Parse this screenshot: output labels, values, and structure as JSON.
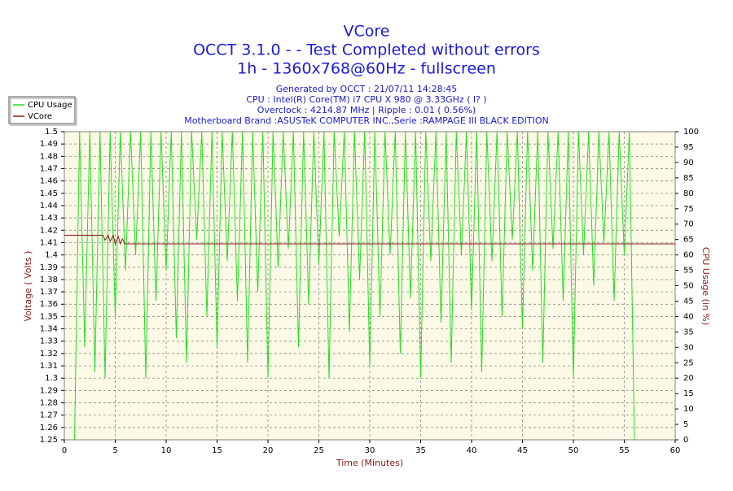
{
  "chart_data": {
    "type": "line",
    "title": "VCore",
    "subtitle": [
      "OCCT 3.1.0 -  - Test Completed without errors",
      "1h - 1360x768@60Hz - fullscreen"
    ],
    "info": [
      "Generated by OCCT : 21/07/11 14:28:45",
      "CPU : Intel(R) Core(TM) i7 CPU X 980 @ 3.33GHz (   l? )",
      "Overclock : 4214.87 MHz | Ripple : 0.01 ( 0.56%)",
      "Motherboard Brand :ASUSTeK COMPUTER INC.,Serie :RAMPAGE III BLACK EDITION"
    ],
    "xlabel": "Time (Minutes)",
    "ylabel": "Voltage ( Volts )",
    "y2label": "CPU Usage (in %)",
    "xlim": [
      0,
      60
    ],
    "xticks": [
      0,
      5,
      10,
      15,
      20,
      25,
      30,
      35,
      40,
      45,
      50,
      55,
      60
    ],
    "ylim": [
      1.25,
      1.5
    ],
    "yticks": [
      1.25,
      1.26,
      1.27,
      1.28,
      1.29,
      1.3,
      1.31,
      1.32,
      1.33,
      1.34,
      1.35,
      1.36,
      1.37,
      1.38,
      1.39,
      1.4,
      1.41,
      1.42,
      1.43,
      1.44,
      1.45,
      1.46,
      1.47,
      1.48,
      1.49,
      1.5
    ],
    "y2lim": [
      0,
      100
    ],
    "y2ticks": [
      0,
      5,
      10,
      15,
      20,
      25,
      30,
      35,
      40,
      45,
      50,
      55,
      60,
      65,
      70,
      75,
      80,
      85,
      90,
      95,
      100
    ],
    "grid": true,
    "legend": "top-left",
    "series": [
      {
        "name": "CPU Usage",
        "color": "#22dd22",
        "axis": "y2",
        "x": [
          1,
          1.5,
          2,
          2.5,
          3,
          3.5,
          4,
          4.5,
          5,
          5.5,
          6,
          6.5,
          7,
          7.5,
          8,
          8.5,
          9,
          9.5,
          10,
          10.5,
          11,
          11.5,
          12,
          12.5,
          13,
          13.5,
          14,
          14.5,
          15,
          15.5,
          16,
          16.5,
          17,
          17.5,
          18,
          18.5,
          19,
          19.5,
          20,
          20.5,
          21,
          21.5,
          22,
          22.5,
          23,
          23.5,
          24,
          24.5,
          25,
          25.5,
          26,
          26.5,
          27,
          27.5,
          28,
          28.5,
          29,
          29.5,
          30,
          30.5,
          31,
          31.5,
          32,
          32.5,
          33,
          33.5,
          34,
          34.5,
          35,
          35.5,
          36,
          36.5,
          37,
          37.5,
          38,
          38.5,
          39,
          39.5,
          40,
          40.5,
          41,
          41.5,
          42,
          42.5,
          43,
          43.5,
          44,
          44.5,
          45,
          45.5,
          46,
          46.5,
          47,
          47.5,
          48,
          48.5,
          49,
          49.5,
          50,
          50.5,
          51,
          51.5,
          52,
          52.5,
          53,
          53.5,
          54,
          54.5,
          55,
          55.5,
          56
        ],
        "values": [
          0,
          100,
          30,
          100,
          22,
          100,
          20,
          100,
          40,
          100,
          55,
          100,
          60,
          100,
          20,
          100,
          45,
          100,
          55,
          100,
          33,
          100,
          25,
          100,
          65,
          100,
          40,
          100,
          30,
          100,
          58,
          100,
          45,
          100,
          25,
          100,
          48,
          100,
          20,
          100,
          56,
          100,
          62,
          100,
          30,
          100,
          44,
          100,
          57,
          100,
          20,
          100,
          66,
          100,
          35,
          100,
          52,
          100,
          24,
          100,
          40,
          100,
          60,
          100,
          28,
          100,
          46,
          100,
          20,
          100,
          58,
          100,
          38,
          100,
          25,
          100,
          60,
          100,
          42,
          100,
          22,
          100,
          58,
          100,
          40,
          100,
          65,
          100,
          36,
          100,
          55,
          100,
          25,
          100,
          62,
          100,
          45,
          100,
          20,
          100,
          60,
          100,
          50,
          100,
          64,
          100,
          45,
          100,
          60,
          100,
          0
        ]
      },
      {
        "name": "VCore",
        "color": "#8b1a1a",
        "x": [
          0,
          3.8,
          4.0,
          4.3,
          4.5,
          4.8,
          5.0,
          5.3,
          5.5,
          5.7,
          6,
          60
        ],
        "values": [
          1.416,
          1.416,
          1.412,
          1.416,
          1.411,
          1.416,
          1.409,
          1.415,
          1.409,
          1.413,
          1.409,
          1.409
        ]
      }
    ]
  }
}
